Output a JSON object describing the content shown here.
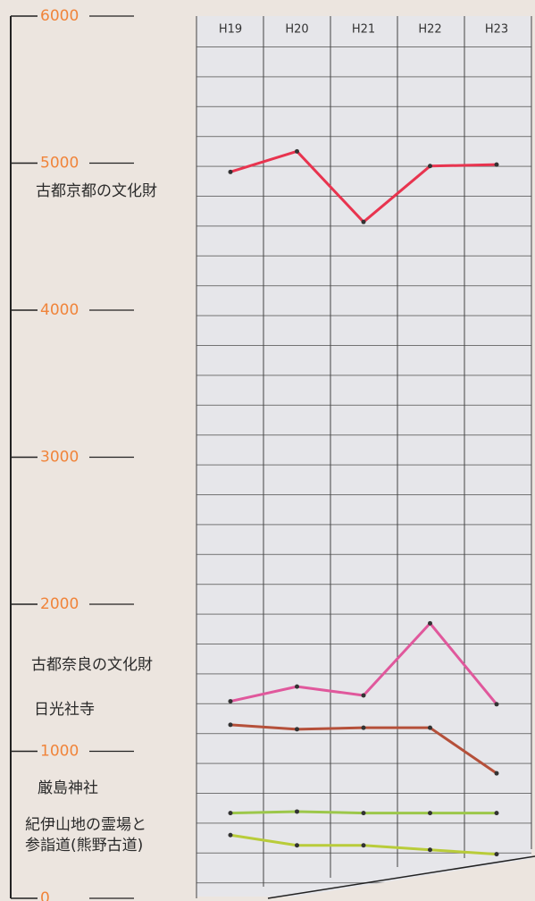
{
  "chart_data": {
    "type": "line",
    "categories": [
      "H19",
      "H20",
      "H21",
      "H22",
      "H23"
    ],
    "ylim": [
      0,
      6000
    ],
    "yticks": [
      0,
      1000,
      2000,
      3000,
      4000,
      5000,
      6000
    ],
    "series": [
      {
        "name": "古都京都の文化財",
        "color": "#e8344f",
        "values": [
          4940,
          5080,
          4600,
          4980,
          4990
        ]
      },
      {
        "name": "古都奈良の文化財",
        "color": "#e0589c",
        "values": [
          1340,
          1440,
          1380,
          1870,
          1320
        ]
      },
      {
        "name": "日光社寺",
        "color": "#b5503a",
        "values": [
          1180,
          1150,
          1160,
          1160,
          850
        ]
      },
      {
        "name": "厳島神社",
        "color": "#9cc74a",
        "values": [
          580,
          590,
          580,
          580,
          580
        ]
      },
      {
        "name": "紀伊山地の霊場と参詣道(熊野古道)",
        "color": "#b9cc3a",
        "values": [
          430,
          360,
          360,
          330,
          300
        ]
      }
    ]
  }
}
